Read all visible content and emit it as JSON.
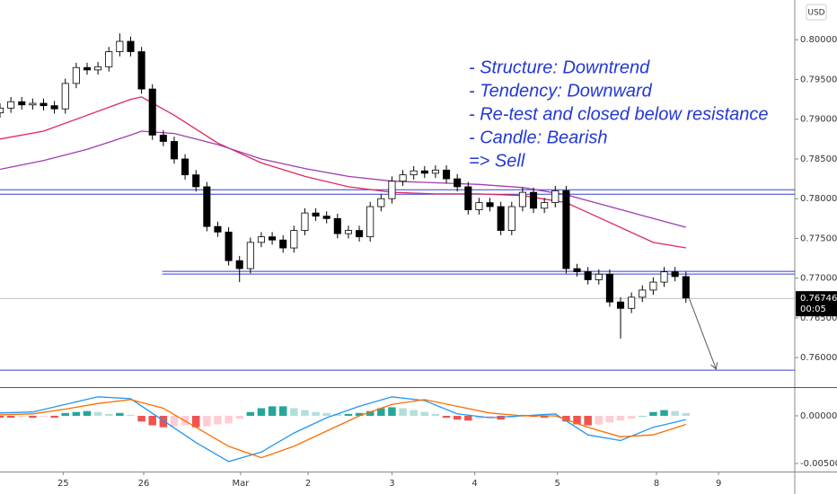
{
  "chart_data": [
    {
      "type": "candlestick",
      "currency": "USD",
      "xlim": [
        0,
        73
      ],
      "xticks": [
        {
          "value": 5.8,
          "label": "25"
        },
        {
          "value": 13.2,
          "label": "26"
        },
        {
          "value": 22.1,
          "label": "Mar"
        },
        {
          "value": 28.3,
          "label": "2"
        },
        {
          "value": 36,
          "label": "3"
        },
        {
          "value": 43.6,
          "label": "4"
        },
        {
          "value": 51.2,
          "label": "5"
        },
        {
          "value": 60.3,
          "label": "8"
        },
        {
          "value": 66,
          "label": "9"
        }
      ],
      "ylim": [
        0.7564,
        0.805
      ],
      "yticks": [
        {
          "value": 0.8,
          "label": "0.80000"
        },
        {
          "value": 0.795,
          "label": "0.79500"
        },
        {
          "value": 0.79,
          "label": "0.79000"
        },
        {
          "value": 0.785,
          "label": "0.78500"
        },
        {
          "value": 0.78,
          "label": "0.78000"
        },
        {
          "value": 0.775,
          "label": "0.77500"
        },
        {
          "value": 0.77,
          "label": "0.77000"
        },
        {
          "value": 0.765,
          "label": "0.76500"
        },
        {
          "value": 0.76,
          "label": "0.76000"
        }
      ],
      "up_color": "#ffffff",
      "down_color": "#000000",
      "open": [
        0.7908,
        0.7914,
        0.7922,
        0.7918,
        0.792,
        0.7917,
        0.7913,
        0.7945,
        0.7965,
        0.7962,
        0.7966,
        0.7985,
        0.7998,
        0.7985,
        0.7938,
        0.788,
        0.7872,
        0.785,
        0.783,
        0.7815,
        0.7765,
        0.7758,
        0.7722,
        0.7712,
        0.7745,
        0.7752,
        0.7748,
        0.7738,
        0.776,
        0.7782,
        0.7778,
        0.7775,
        0.7756,
        0.776,
        0.7752,
        0.779,
        0.78,
        0.7822,
        0.783,
        0.7835,
        0.7832,
        0.7836,
        0.7825,
        0.7815,
        0.7786,
        0.7795,
        0.779,
        0.776,
        0.779,
        0.7808,
        0.7788,
        0.7795,
        0.781,
        0.7712,
        0.7708,
        0.7698,
        0.7705,
        0.767,
        0.7662,
        0.7676,
        0.7685,
        0.7695,
        0.7708,
        0.7702
      ],
      "high": [
        0.792,
        0.7928,
        0.7928,
        0.7926,
        0.7926,
        0.7923,
        0.7951,
        0.7971,
        0.7971,
        0.7972,
        0.7991,
        0.8008,
        0.8004,
        0.7991,
        0.7944,
        0.7886,
        0.7878,
        0.7856,
        0.7836,
        0.7821,
        0.7771,
        0.7764,
        0.7728,
        0.7751,
        0.7758,
        0.7758,
        0.7754,
        0.7766,
        0.7788,
        0.7788,
        0.7784,
        0.7781,
        0.7766,
        0.7766,
        0.7796,
        0.7806,
        0.7828,
        0.7836,
        0.7841,
        0.7841,
        0.7842,
        0.7842,
        0.7831,
        0.7821,
        0.7801,
        0.7801,
        0.7796,
        0.7796,
        0.7814,
        0.7814,
        0.7801,
        0.7816,
        0.7816,
        0.7718,
        0.7714,
        0.7711,
        0.7711,
        0.7676,
        0.7682,
        0.7691,
        0.7701,
        0.7714,
        0.7714,
        0.7708
      ],
      "low": [
        0.7902,
        0.7908,
        0.7912,
        0.7912,
        0.7911,
        0.7907,
        0.7907,
        0.7939,
        0.7956,
        0.7956,
        0.796,
        0.7979,
        0.7979,
        0.7932,
        0.7874,
        0.7866,
        0.7844,
        0.7824,
        0.7809,
        0.7759,
        0.7752,
        0.7716,
        0.7695,
        0.7706,
        0.7739,
        0.7742,
        0.7732,
        0.7732,
        0.7754,
        0.7772,
        0.7769,
        0.775,
        0.775,
        0.7746,
        0.7746,
        0.7784,
        0.7794,
        0.7816,
        0.7824,
        0.7826,
        0.7826,
        0.7819,
        0.7809,
        0.778,
        0.778,
        0.7784,
        0.7754,
        0.7754,
        0.7784,
        0.7782,
        0.7782,
        0.7789,
        0.7706,
        0.7702,
        0.7692,
        0.7692,
        0.7664,
        0.7624,
        0.7656,
        0.767,
        0.7679,
        0.7689,
        0.7696,
        0.7669
      ],
      "close": [
        0.7914,
        0.7922,
        0.7918,
        0.792,
        0.7917,
        0.7913,
        0.7945,
        0.7965,
        0.7962,
        0.7966,
        0.7985,
        0.7998,
        0.7985,
        0.7938,
        0.788,
        0.7872,
        0.785,
        0.783,
        0.7815,
        0.7765,
        0.7758,
        0.7722,
        0.7712,
        0.7745,
        0.7752,
        0.7748,
        0.7738,
        0.776,
        0.7782,
        0.7778,
        0.7775,
        0.7756,
        0.776,
        0.7752,
        0.779,
        0.78,
        0.7822,
        0.783,
        0.7835,
        0.7832,
        0.7836,
        0.7825,
        0.7815,
        0.7786,
        0.7795,
        0.779,
        0.776,
        0.779,
        0.7808,
        0.7788,
        0.7795,
        0.781,
        0.7712,
        0.7708,
        0.7698,
        0.7705,
        0.767,
        0.7662,
        0.7676,
        0.7685,
        0.7695,
        0.7708,
        0.7702,
        0.7675
      ],
      "series": [
        {
          "color": "#e0245e",
          "x": [
            0,
            4,
            8,
            12,
            13,
            16,
            20,
            24,
            28,
            32,
            36,
            40,
            44,
            48,
            52,
            56,
            60,
            63
          ],
          "values": [
            0.7875,
            0.7885,
            0.7905,
            0.7925,
            0.7928,
            0.7905,
            0.787,
            0.7845,
            0.7828,
            0.7815,
            0.7808,
            0.7806,
            0.7806,
            0.7804,
            0.7795,
            0.777,
            0.7745,
            0.7738
          ]
        },
        {
          "color": "#a03cb4",
          "x": [
            0,
            4,
            8,
            12,
            13,
            16,
            20,
            24,
            28,
            32,
            36,
            40,
            44,
            48,
            52,
            56,
            60,
            63
          ],
          "values": [
            0.7837,
            0.7848,
            0.7862,
            0.788,
            0.7885,
            0.7882,
            0.7868,
            0.785,
            0.7838,
            0.7828,
            0.7822,
            0.782,
            0.7818,
            0.7814,
            0.7805,
            0.779,
            0.7775,
            0.7764
          ]
        }
      ],
      "level_color": "#3340d0",
      "levels": [
        {
          "value": 0.78113,
          "x_start": 0
        },
        {
          "value": 0.78056,
          "x_start": 0
        },
        {
          "value": 0.77085,
          "x_start": 14.9
        },
        {
          "value": 0.77051,
          "x_start": 14.9
        },
        {
          "value": 0.75842,
          "x_start": 0
        }
      ],
      "last_price": 0.76746,
      "countdown": "00:05",
      "annotation": [
        "- Structure: Downtrend",
        "- Tendency: Downward",
        "- Re-test and closed below resistance",
        "- Candle: Bearish",
        "=> Sell"
      ],
      "annotation_color": "#2338d4"
    },
    {
      "type": "macd",
      "ylim": [
        -0.00585,
        0.00292
      ],
      "yticks": [
        {
          "value": 0,
          "label": "0.00000"
        },
        {
          "value": -0.005,
          "label": "-0.00500"
        }
      ],
      "histogram_colors": {
        "up_grow": "#26a69a",
        "up_fall": "#b2dfdb",
        "down_grow": "#ef5350",
        "down_fall": "#ffcdd2"
      },
      "histogram": [
        -0.0002,
        -0.0002,
        -0.0001,
        -0.0002,
        -0.0001,
        -0.0002,
        0.0003,
        0.0004,
        0.0005,
        0.0004,
        0.0002,
        0.0003,
        0.0001,
        -0.0006,
        -0.001,
        -0.0012,
        -0.0011,
        -0.001,
        -0.0012,
        -0.0011,
        -0.0009,
        -0.0008,
        -0.0003,
        0.0004,
        0.0008,
        0.001,
        0.001,
        0.0008,
        0.0006,
        0.0004,
        0.0003,
        0.0002,
        0.0002,
        0.0003,
        0.0005,
        0.0008,
        0.0009,
        0.0008,
        0.0006,
        0.0004,
        0.0002,
        -0.0002,
        -0.0004,
        -0.0005,
        -0.0003,
        -0.0002,
        -0.0004,
        -0.0002,
        0.0001,
        -0.0001,
        -0.0002,
        -0.0001,
        -0.0006,
        -0.0009,
        -0.001,
        -0.0009,
        -0.0007,
        -0.0005,
        -0.0003,
        0.0,
        0.0004,
        0.0006,
        0.0005,
        0.0003
      ],
      "series": [
        {
          "color": "#2196f3",
          "x": [
            0,
            3,
            6,
            9,
            12,
            15,
            18,
            21,
            24,
            27,
            30,
            33,
            36,
            39,
            42,
            45,
            48,
            51,
            54,
            57,
            60,
            63
          ],
          "values": [
            0.0003,
            0.0004,
            0.0012,
            0.002,
            0.0018,
            -0.0005,
            -0.0028,
            -0.0048,
            -0.0038,
            -0.0018,
            -0.0002,
            0.001,
            0.002,
            0.0016,
            0.0002,
            -0.0002,
            0.0,
            0.0002,
            -0.002,
            -0.0026,
            -0.0012,
            -0.0004
          ]
        },
        {
          "color": "#ff6d00",
          "x": [
            0,
            3,
            6,
            9,
            12,
            15,
            18,
            21,
            24,
            27,
            30,
            33,
            36,
            39,
            42,
            45,
            48,
            51,
            54,
            57,
            60,
            63
          ],
          "values": [
            0.0001,
            0.0002,
            0.0007,
            0.0013,
            0.0017,
            0.0008,
            -0.0012,
            -0.0032,
            -0.0044,
            -0.0032,
            -0.0016,
            0.0,
            0.0012,
            0.0017,
            0.001,
            0.0003,
            0.0,
            0.0,
            -0.0012,
            -0.0022,
            -0.002,
            -0.0009
          ]
        }
      ]
    }
  ]
}
